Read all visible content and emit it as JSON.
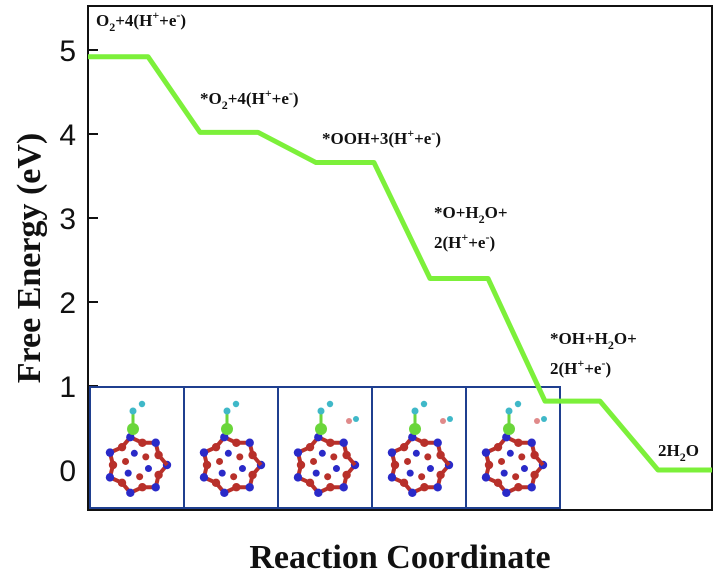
{
  "chart_data": {
    "type": "line",
    "subtype": "step",
    "xlabel": "Reaction Coordinate",
    "ylabel": "Free Energy (eV)",
    "ylim": [
      -0.5,
      5.5
    ],
    "yticks": [
      0,
      1,
      2,
      3,
      4,
      5
    ],
    "grid": false,
    "line_color": "#7cf03a",
    "states": [
      {
        "name": "O2+4(H+ +e-)",
        "energy": 4.92
      },
      {
        "name": "*O2+4(H+ +e-)",
        "energy": 4.02
      },
      {
        "name": "*OOH+3(H+ +e-)",
        "energy": 3.66
      },
      {
        "name": "*O+H2O+2(H+ +e-)",
        "energy": 2.28
      },
      {
        "name": "*OH+H2O+2(H+ +e-)",
        "energy": 0.82
      },
      {
        "name": "2H2O",
        "energy": 0.0
      }
    ],
    "inset": {
      "description": "five structure panels",
      "panel_count": 5,
      "border_color": "#1f3f8f",
      "atom_colors": {
        "cage_a": "#b8302a",
        "cage_b": "#2a2ac8",
        "metal": "#6ad63a",
        "adsorbate": "#3fb8c8"
      }
    }
  }
}
